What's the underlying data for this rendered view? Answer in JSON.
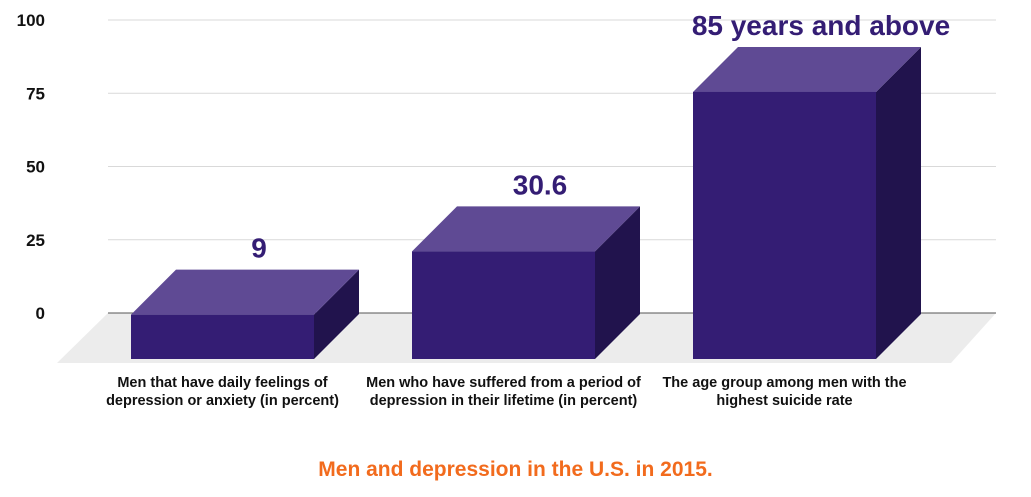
{
  "chart_data": {
    "type": "bar",
    "title": "Men and depression in the U.S. in 2015.",
    "categories": [
      "Men that have daily feelings of depression or anxiety (in percent)",
      "Men who have suffered from a period of depression in their lifetime (in percent)",
      "The age group among men with the highest suicide rate"
    ],
    "values": [
      9,
      30.6,
      85
    ],
    "data_labels": [
      "9",
      "30.6",
      "85 years and above"
    ],
    "yticks": [
      "0",
      "25",
      "50",
      "75",
      "100"
    ],
    "ylim": [
      0,
      100
    ],
    "grid": true,
    "legend": "none",
    "colors": {
      "bar_front": "#341d74",
      "bar_top": "#5f4a94",
      "bar_side": "#21134d",
      "floor": "#ececec",
      "grid": "#d9d9d9",
      "data_label": "#341d74",
      "title": "#f26b1d"
    }
  }
}
